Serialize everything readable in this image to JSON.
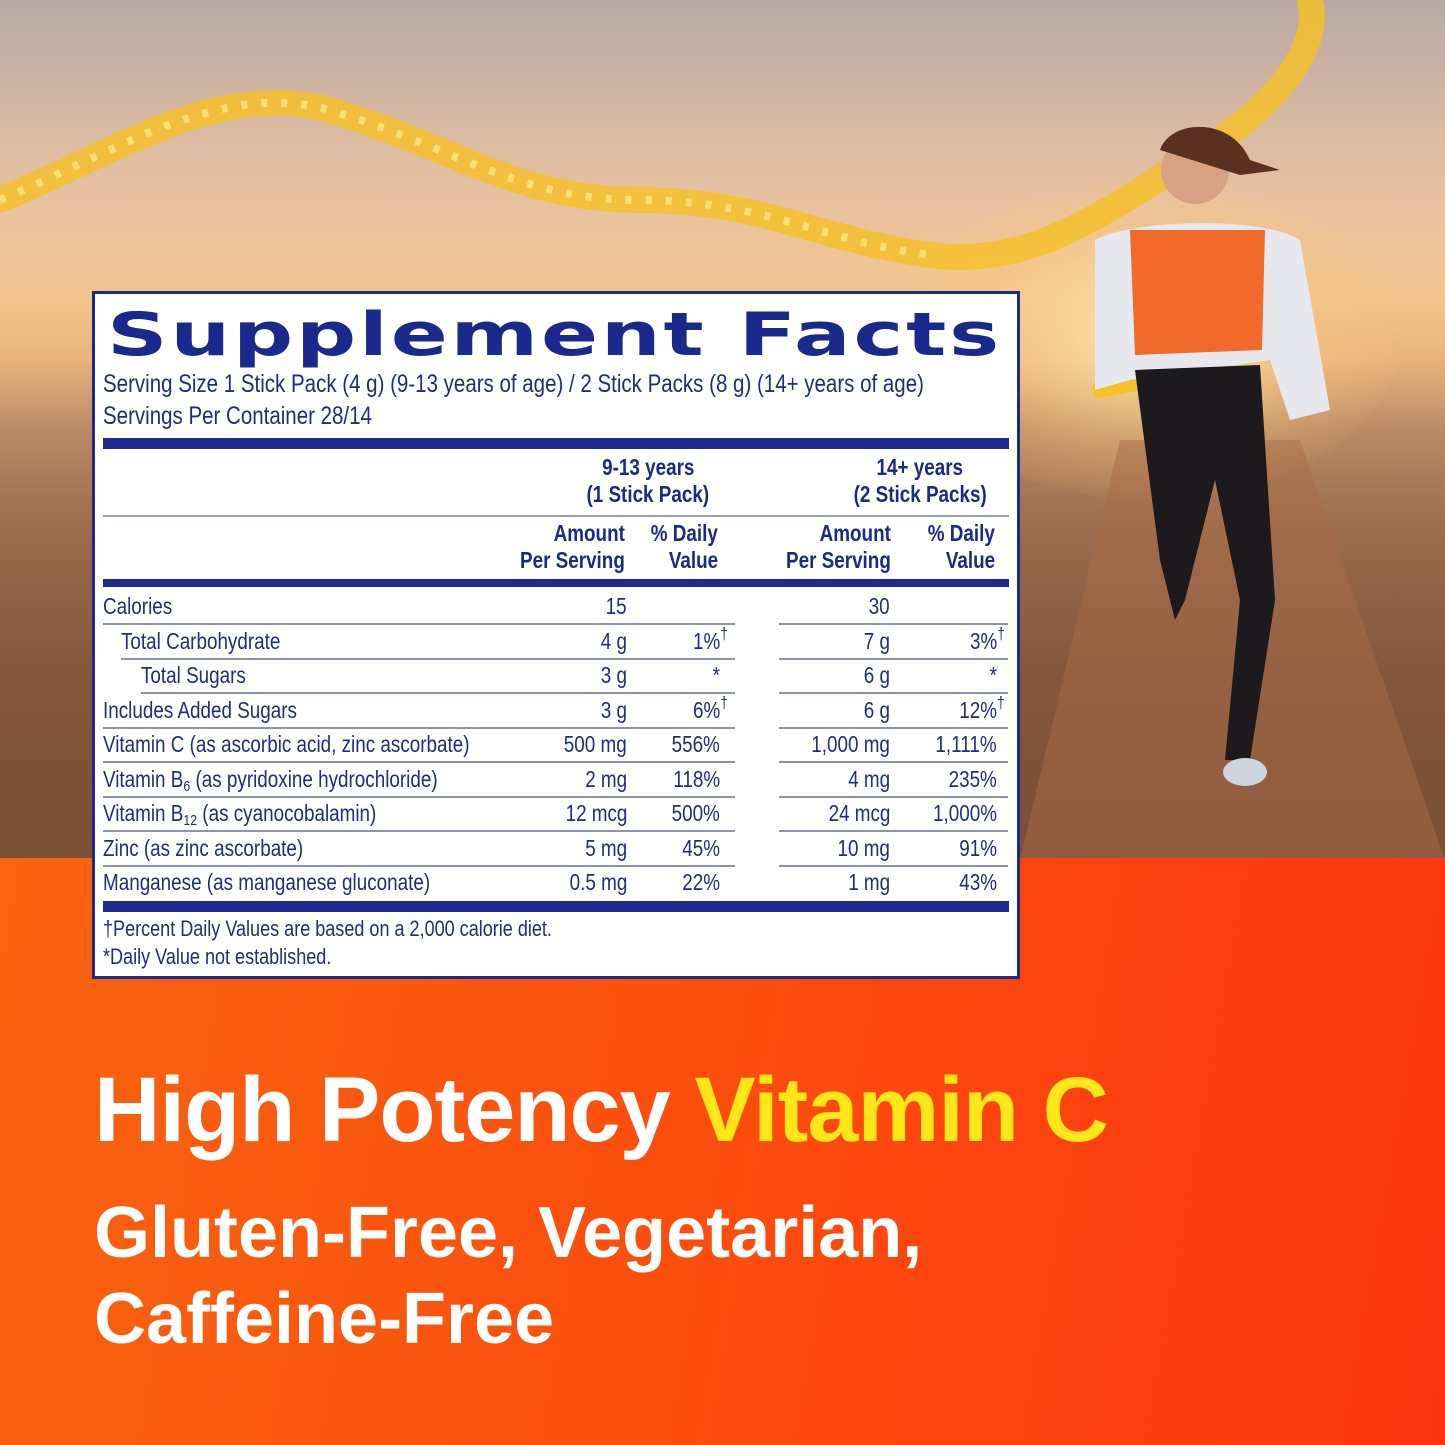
{
  "colors": {
    "navy": "#1b2a8c",
    "accent_yellow": "#ffe619",
    "bottom_orange": "#f86410",
    "bottom_red": "#fe3410"
  },
  "facts": {
    "title": "Supplement Facts",
    "serving_size": "Serving Size 1 Stick Pack (4 g) (9-13 years of age) / 2 Stick Packs (8 g) (14+ years of age)",
    "servings_per_container": "Servings Per Container 28/14",
    "groups": [
      {
        "age": "9-13 years",
        "packs": "(1 Stick Pack)"
      },
      {
        "age": "14+ years",
        "packs": "(2 Stick Packs)"
      }
    ],
    "col_amount": [
      "Amount",
      "Per Serving"
    ],
    "col_dv": [
      "% Daily",
      "Value"
    ],
    "rows": [
      {
        "label": "Calories",
        "amt1": "15",
        "dv1": "",
        "m1": "",
        "amt2": "30",
        "dv2": "",
        "m2": ""
      },
      {
        "label": "Total Carbohydrate",
        "amt1": "4 g",
        "dv1": "1%",
        "m1": "†",
        "amt2": "7 g",
        "dv2": "3%",
        "m2": "†"
      },
      {
        "label": "Total Sugars",
        "amt1": "3 g",
        "dv1": "*",
        "m1": "",
        "amt2": "6 g",
        "dv2": "*",
        "m2": ""
      },
      {
        "label": "Includes Added Sugars",
        "amt1": "3 g",
        "dv1": "6%",
        "m1": "†",
        "amt2": "6 g",
        "dv2": "12%",
        "m2": "†"
      },
      {
        "label": "Vitamin C (as ascorbic acid, zinc ascorbate)",
        "amt1": "500 mg",
        "dv1": "556%",
        "m1": "",
        "amt2": "1,000 mg",
        "dv2": "1,111%",
        "m2": ""
      },
      {
        "label_pre": "Vitamin B",
        "label_sub": "6",
        "label_post": " (as pyridoxine hydrochloride)",
        "amt1": "2 mg",
        "dv1": "118%",
        "m1": "",
        "amt2": "4 mg",
        "dv2": "235%",
        "m2": ""
      },
      {
        "label_pre": "Vitamin B",
        "label_sub": "12",
        "label_post": " (as cyanocobalamin)",
        "amt1": "12 mcg",
        "dv1": "500%",
        "m1": "",
        "amt2": "24 mcg",
        "dv2": "1,000%",
        "m2": ""
      },
      {
        "label": "Zinc (as zinc ascorbate)",
        "amt1": "5 mg",
        "dv1": "45%",
        "m1": "",
        "amt2": "10 mg",
        "dv2": "91%",
        "m2": ""
      },
      {
        "label": "Manganese (as manganese gluconate)",
        "amt1": "0.5 mg",
        "dv1": "22%",
        "m1": "",
        "amt2": "1 mg",
        "dv2": "43%",
        "m2": ""
      }
    ],
    "footnote_dagger": "†Percent Daily Values are based on a 2,000 calorie diet.",
    "footnote_star": "*Daily Value not established."
  },
  "headline": {
    "white": "High Potency ",
    "yellow": "Vitamin C"
  },
  "subline": [
    "Gluten-Free, Vegetarian,",
    "Caffeine-Free"
  ]
}
